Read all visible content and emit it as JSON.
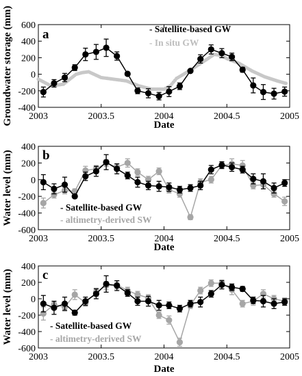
{
  "colors": {
    "satellite": "#000000",
    "secondary": "#a6a6a6",
    "insitu": "#c8c8c8",
    "axis": "#000000"
  },
  "chart_data": [
    {
      "type": "line",
      "panel_label": "a",
      "ylabel": "Groundwater storage (mm)",
      "xlabel": "Date",
      "xlim": [
        2003,
        2005
      ],
      "ylim": [
        -400,
        600
      ],
      "x_ticks": [
        2003,
        2003.5,
        2004,
        2004.5,
        2005
      ],
      "x_tick_labels": [
        "2003",
        "2003.5",
        "2004",
        "2004.5",
        "2005"
      ],
      "y_ticks": [
        -400,
        -200,
        0,
        200,
        400,
        600
      ],
      "y_tick_labels": [
        "-400",
        "-200",
        "0",
        "200",
        "400",
        "600"
      ],
      "legend": {
        "position": "top-right",
        "entries": [
          "- Satellite-based GW",
          "- In situ GW"
        ]
      },
      "grid": false,
      "series": [
        {
          "name": "Satellite-based GW",
          "style": "line-markers-errorbars",
          "x": [
            2003.04,
            2003.125,
            2003.21,
            2003.29,
            2003.375,
            2003.46,
            2003.54,
            2003.625,
            2003.71,
            2003.79,
            2003.875,
            2003.96,
            2004.04,
            2004.125,
            2004.21,
            2004.29,
            2004.375,
            2004.46,
            2004.54,
            2004.625,
            2004.71,
            2004.79,
            2004.875,
            2004.96
          ],
          "y": [
            -215,
            -110,
            -40,
            80,
            240,
            270,
            320,
            220,
            5,
            -200,
            -230,
            -265,
            -210,
            -145,
            40,
            185,
            300,
            255,
            210,
            55,
            -135,
            -215,
            -235,
            -210
          ],
          "err": [
            60,
            45,
            50,
            35,
            75,
            90,
            105,
            50,
            20,
            35,
            55,
            45,
            60,
            40,
            10,
            50,
            55,
            55,
            45,
            30,
            90,
            90,
            65,
            55
          ]
        },
        {
          "name": "In situ GW",
          "style": "dense-markers",
          "x": [
            2003.0,
            2003.1,
            2003.2,
            2003.3,
            2003.35,
            2003.4,
            2003.5,
            2003.6,
            2003.7,
            2003.8,
            2003.9,
            2004.0,
            2004.05,
            2004.1,
            2004.2,
            2004.3,
            2004.4,
            2004.45,
            2004.5,
            2004.6,
            2004.7,
            2004.8,
            2004.9,
            2004.97
          ],
          "y": [
            -60,
            -140,
            -120,
            0,
            20,
            30,
            -40,
            -60,
            -80,
            -140,
            -180,
            -180,
            -140,
            -50,
            40,
            140,
            240,
            230,
            190,
            130,
            40,
            -30,
            -80,
            -110
          ]
        }
      ]
    },
    {
      "type": "line",
      "panel_label": "b",
      "ylabel": "Water level (mm)",
      "xlabel": "Date",
      "xlim": [
        2003,
        2005
      ],
      "ylim": [
        -600,
        400
      ],
      "x_ticks": [
        2003,
        2003.5,
        2004,
        2004.5,
        2005
      ],
      "x_tick_labels": [
        "2003",
        "2003.5",
        "2004",
        "2004.5",
        "2005"
      ],
      "y_ticks": [
        -600,
        -400,
        -200,
        0,
        200,
        400
      ],
      "y_tick_labels": [
        "-600",
        "-400",
        "-200",
        "0",
        "200",
        "400"
      ],
      "legend": {
        "position": "bottom-left",
        "entries": [
          "- Satellite-based GW",
          "- altimetry-derived SW"
        ]
      },
      "grid": false,
      "series": [
        {
          "name": "Satellite-based GW",
          "style": "line-markers-errorbars",
          "x": [
            2003.04,
            2003.125,
            2003.21,
            2003.29,
            2003.375,
            2003.46,
            2003.54,
            2003.625,
            2003.71,
            2003.79,
            2003.875,
            2003.96,
            2004.04,
            2004.125,
            2004.21,
            2004.29,
            2004.375,
            2004.46,
            2004.54,
            2004.625,
            2004.71,
            2004.79,
            2004.875,
            2004.96
          ],
          "y": [
            -30,
            -110,
            -60,
            -200,
            40,
            100,
            210,
            130,
            50,
            -30,
            -70,
            -80,
            -90,
            -120,
            -100,
            -70,
            120,
            175,
            150,
            120,
            10,
            -20,
            -100,
            -40
          ],
          "err": [
            90,
            60,
            90,
            20,
            50,
            60,
            90,
            60,
            40,
            60,
            50,
            60,
            50,
            40,
            40,
            50,
            50,
            40,
            50,
            40,
            60,
            90,
            60,
            40
          ]
        },
        {
          "name": "altimetry-derived SW",
          "style": "line-markers-errorbars",
          "x": [
            2003.04,
            2003.125,
            2003.21,
            2003.29,
            2003.375,
            2003.46,
            2003.54,
            2003.625,
            2003.71,
            2003.79,
            2003.875,
            2003.96,
            2004.04,
            2004.125,
            2004.21,
            2004.29,
            2004.375,
            2004.46,
            2004.54,
            2004.625,
            2004.71,
            2004.79,
            2004.875,
            2004.96
          ],
          "y": [
            -280,
            -180,
            -130,
            -140,
            110,
            130,
            200,
            150,
            200,
            90,
            0,
            100,
            -120,
            -170,
            -450,
            -30,
            0,
            170,
            190,
            170,
            -70,
            -60,
            -170,
            -260
          ],
          "err": [
            60,
            40,
            40,
            30,
            50,
            40,
            40,
            40,
            50,
            40,
            40,
            40,
            40,
            40,
            30,
            40,
            40,
            40,
            60,
            60,
            40,
            50,
            40,
            50
          ]
        }
      ]
    },
    {
      "type": "line",
      "panel_label": "c",
      "ylabel": "Water level (mm)",
      "xlabel": "Date",
      "xlim": [
        2003,
        2005
      ],
      "ylim": [
        -600,
        400
      ],
      "x_ticks": [
        2003,
        2003.5,
        2004,
        2004.5,
        2005
      ],
      "x_tick_labels": [
        "2003",
        "2003.5",
        "2004",
        "2004.5",
        "2005"
      ],
      "y_ticks": [
        -600,
        -400,
        -200,
        0,
        200,
        400
      ],
      "y_tick_labels": [
        "-600",
        "-400",
        "-200",
        "0",
        "200",
        "400"
      ],
      "legend": {
        "position": "bottom-left",
        "entries": [
          "- Satellite-based GW",
          "- altimetry-derived SW"
        ]
      },
      "grid": false,
      "series": [
        {
          "name": "Satellite-based GW",
          "style": "line-markers-errorbars",
          "x": [
            2003.04,
            2003.125,
            2003.21,
            2003.29,
            2003.375,
            2003.46,
            2003.54,
            2003.625,
            2003.71,
            2003.79,
            2003.875,
            2003.96,
            2004.04,
            2004.125,
            2004.21,
            2004.29,
            2004.375,
            2004.46,
            2004.54,
            2004.625,
            2004.71,
            2004.79,
            2004.875,
            2004.96
          ],
          "y": [
            -60,
            -110,
            -60,
            -170,
            -30,
            60,
            180,
            160,
            70,
            -30,
            -30,
            -80,
            -80,
            -120,
            -60,
            -40,
            60,
            170,
            140,
            120,
            -20,
            -30,
            -60,
            -40
          ],
          "err": [
            100,
            80,
            80,
            30,
            50,
            60,
            100,
            60,
            40,
            50,
            60,
            60,
            40,
            40,
            40,
            60,
            40,
            50,
            40,
            30,
            40,
            70,
            60,
            40
          ]
        },
        {
          "name": "altimetry-derived SW",
          "style": "line-markers-errorbars",
          "x": [
            2003.04,
            2003.125,
            2003.21,
            2003.29,
            2003.375,
            2003.46,
            2003.54,
            2003.625,
            2003.71,
            2003.79,
            2003.875,
            2003.96,
            2004.04,
            2004.125,
            2004.21,
            2004.29,
            2004.375,
            2004.46,
            2004.54,
            2004.625,
            2004.71,
            2004.79,
            2004.875,
            2004.96
          ],
          "y": [
            -180,
            -70,
            -100,
            50,
            -50,
            80,
            160,
            170,
            100,
            50,
            10,
            -200,
            -260,
            -530,
            -80,
            100,
            190,
            190,
            110,
            -60,
            -30,
            60,
            0,
            -30
          ],
          "err": [
            80,
            40,
            50,
            60,
            40,
            50,
            50,
            50,
            40,
            40,
            40,
            40,
            50,
            50,
            40,
            40,
            40,
            40,
            60,
            40,
            50,
            50,
            40,
            40
          ]
        }
      ]
    }
  ]
}
